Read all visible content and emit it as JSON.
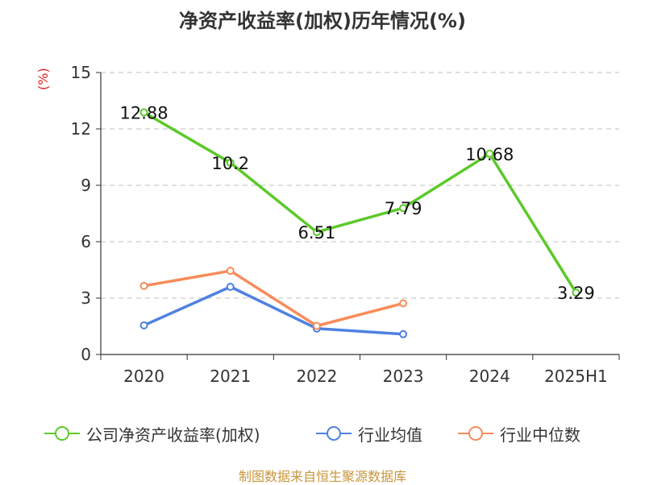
{
  "page": {
    "title": "净资产收益率(加权)历年情况(%)",
    "source": "制图数据来自恒生聚源数据库"
  },
  "colors": {
    "company": "#5cc92a",
    "industry_avg": "#4f81e0",
    "industry_median": "#f78c5a",
    "unit": "#e02020",
    "source": "#c8963c"
  },
  "chart_data": {
    "type": "line",
    "title": "净资产收益率(加权)历年情况(%)",
    "ylabel": "(%)",
    "categories": [
      "2020",
      "2021",
      "2022",
      "2023",
      "2024",
      "2025H1"
    ],
    "ylim": [
      0,
      15
    ],
    "yticks": [
      0,
      3,
      6,
      9,
      12,
      15
    ],
    "grid": true,
    "legend_position": "bottom",
    "series": [
      {
        "name": "公司净资产收益率(加权)",
        "values": [
          12.88,
          10.2,
          6.51,
          7.79,
          10.68,
          3.29
        ],
        "color": "#5cc92a",
        "data_labels": [
          "12.88",
          "10.2",
          "6.51",
          "7.79",
          "10.68",
          "3.29"
        ]
      },
      {
        "name": "行业均值",
        "values": [
          1.55,
          3.6,
          1.38,
          1.08,
          null,
          null
        ],
        "color": "#4f81e0"
      },
      {
        "name": "行业中位数",
        "values": [
          3.65,
          4.45,
          1.52,
          2.72,
          null,
          null
        ],
        "color": "#f78c5a"
      }
    ]
  }
}
